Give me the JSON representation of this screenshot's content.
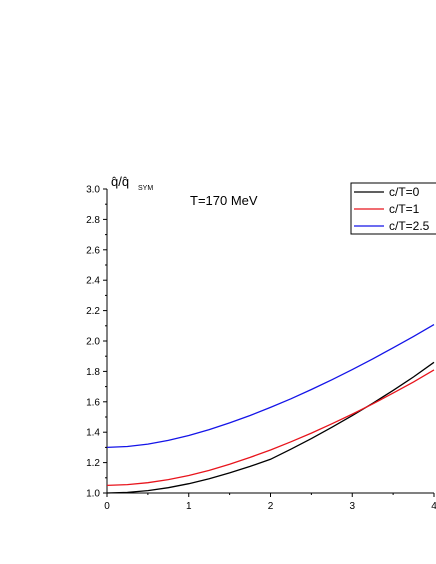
{
  "chart_data": {
    "type": "line",
    "title": "",
    "annotation": "T=170 MeV",
    "ylabel": {
      "main": "q̂/q̂",
      "sub": "SYM"
    },
    "xlabel": "",
    "xlim": [
      0,
      4
    ],
    "ylim": [
      1.0,
      3.0
    ],
    "xticks": [
      "0",
      "1",
      "2",
      "3",
      "4"
    ],
    "yticks": [
      "1.0",
      "1.2",
      "1.4",
      "1.6",
      "1.8",
      "2.0",
      "2.2",
      "2.4",
      "2.6",
      "2.8",
      "3.0"
    ],
    "legend_position": "top-right",
    "series": [
      {
        "name": "c/T=0",
        "color": "#000000",
        "x": [
          0,
          0.25,
          0.5,
          0.75,
          1.0,
          1.25,
          1.5,
          1.75,
          2.0,
          2.25,
          2.5,
          2.75,
          3.0,
          3.25,
          3.5,
          3.75,
          4.0
        ],
        "y": [
          1.0,
          1.004,
          1.016,
          1.035,
          1.061,
          1.094,
          1.132,
          1.175,
          1.222,
          1.288,
          1.358,
          1.432,
          1.509,
          1.59,
          1.675,
          1.764,
          1.86
        ]
      },
      {
        "name": "c/T=1",
        "color": "#e8141c",
        "x": [
          0,
          0.25,
          0.5,
          0.75,
          1.0,
          1.25,
          1.5,
          1.75,
          2.0,
          2.25,
          2.5,
          2.75,
          3.0,
          3.25,
          3.5,
          3.75,
          4.0
        ],
        "y": [
          1.05,
          1.055,
          1.068,
          1.088,
          1.115,
          1.149,
          1.189,
          1.234,
          1.283,
          1.337,
          1.394,
          1.455,
          1.519,
          1.586,
          1.657,
          1.731,
          1.81
        ]
      },
      {
        "name": "c/T=2.5",
        "color": "#1414e8",
        "x": [
          0,
          0.25,
          0.5,
          0.75,
          1.0,
          1.25,
          1.5,
          1.75,
          2.0,
          2.25,
          2.5,
          2.75,
          3.0,
          3.25,
          3.5,
          3.75,
          4.0
        ],
        "y": [
          1.3,
          1.306,
          1.322,
          1.346,
          1.378,
          1.417,
          1.461,
          1.51,
          1.563,
          1.62,
          1.681,
          1.745,
          1.812,
          1.882,
          1.955,
          2.03,
          2.108
        ]
      }
    ]
  }
}
